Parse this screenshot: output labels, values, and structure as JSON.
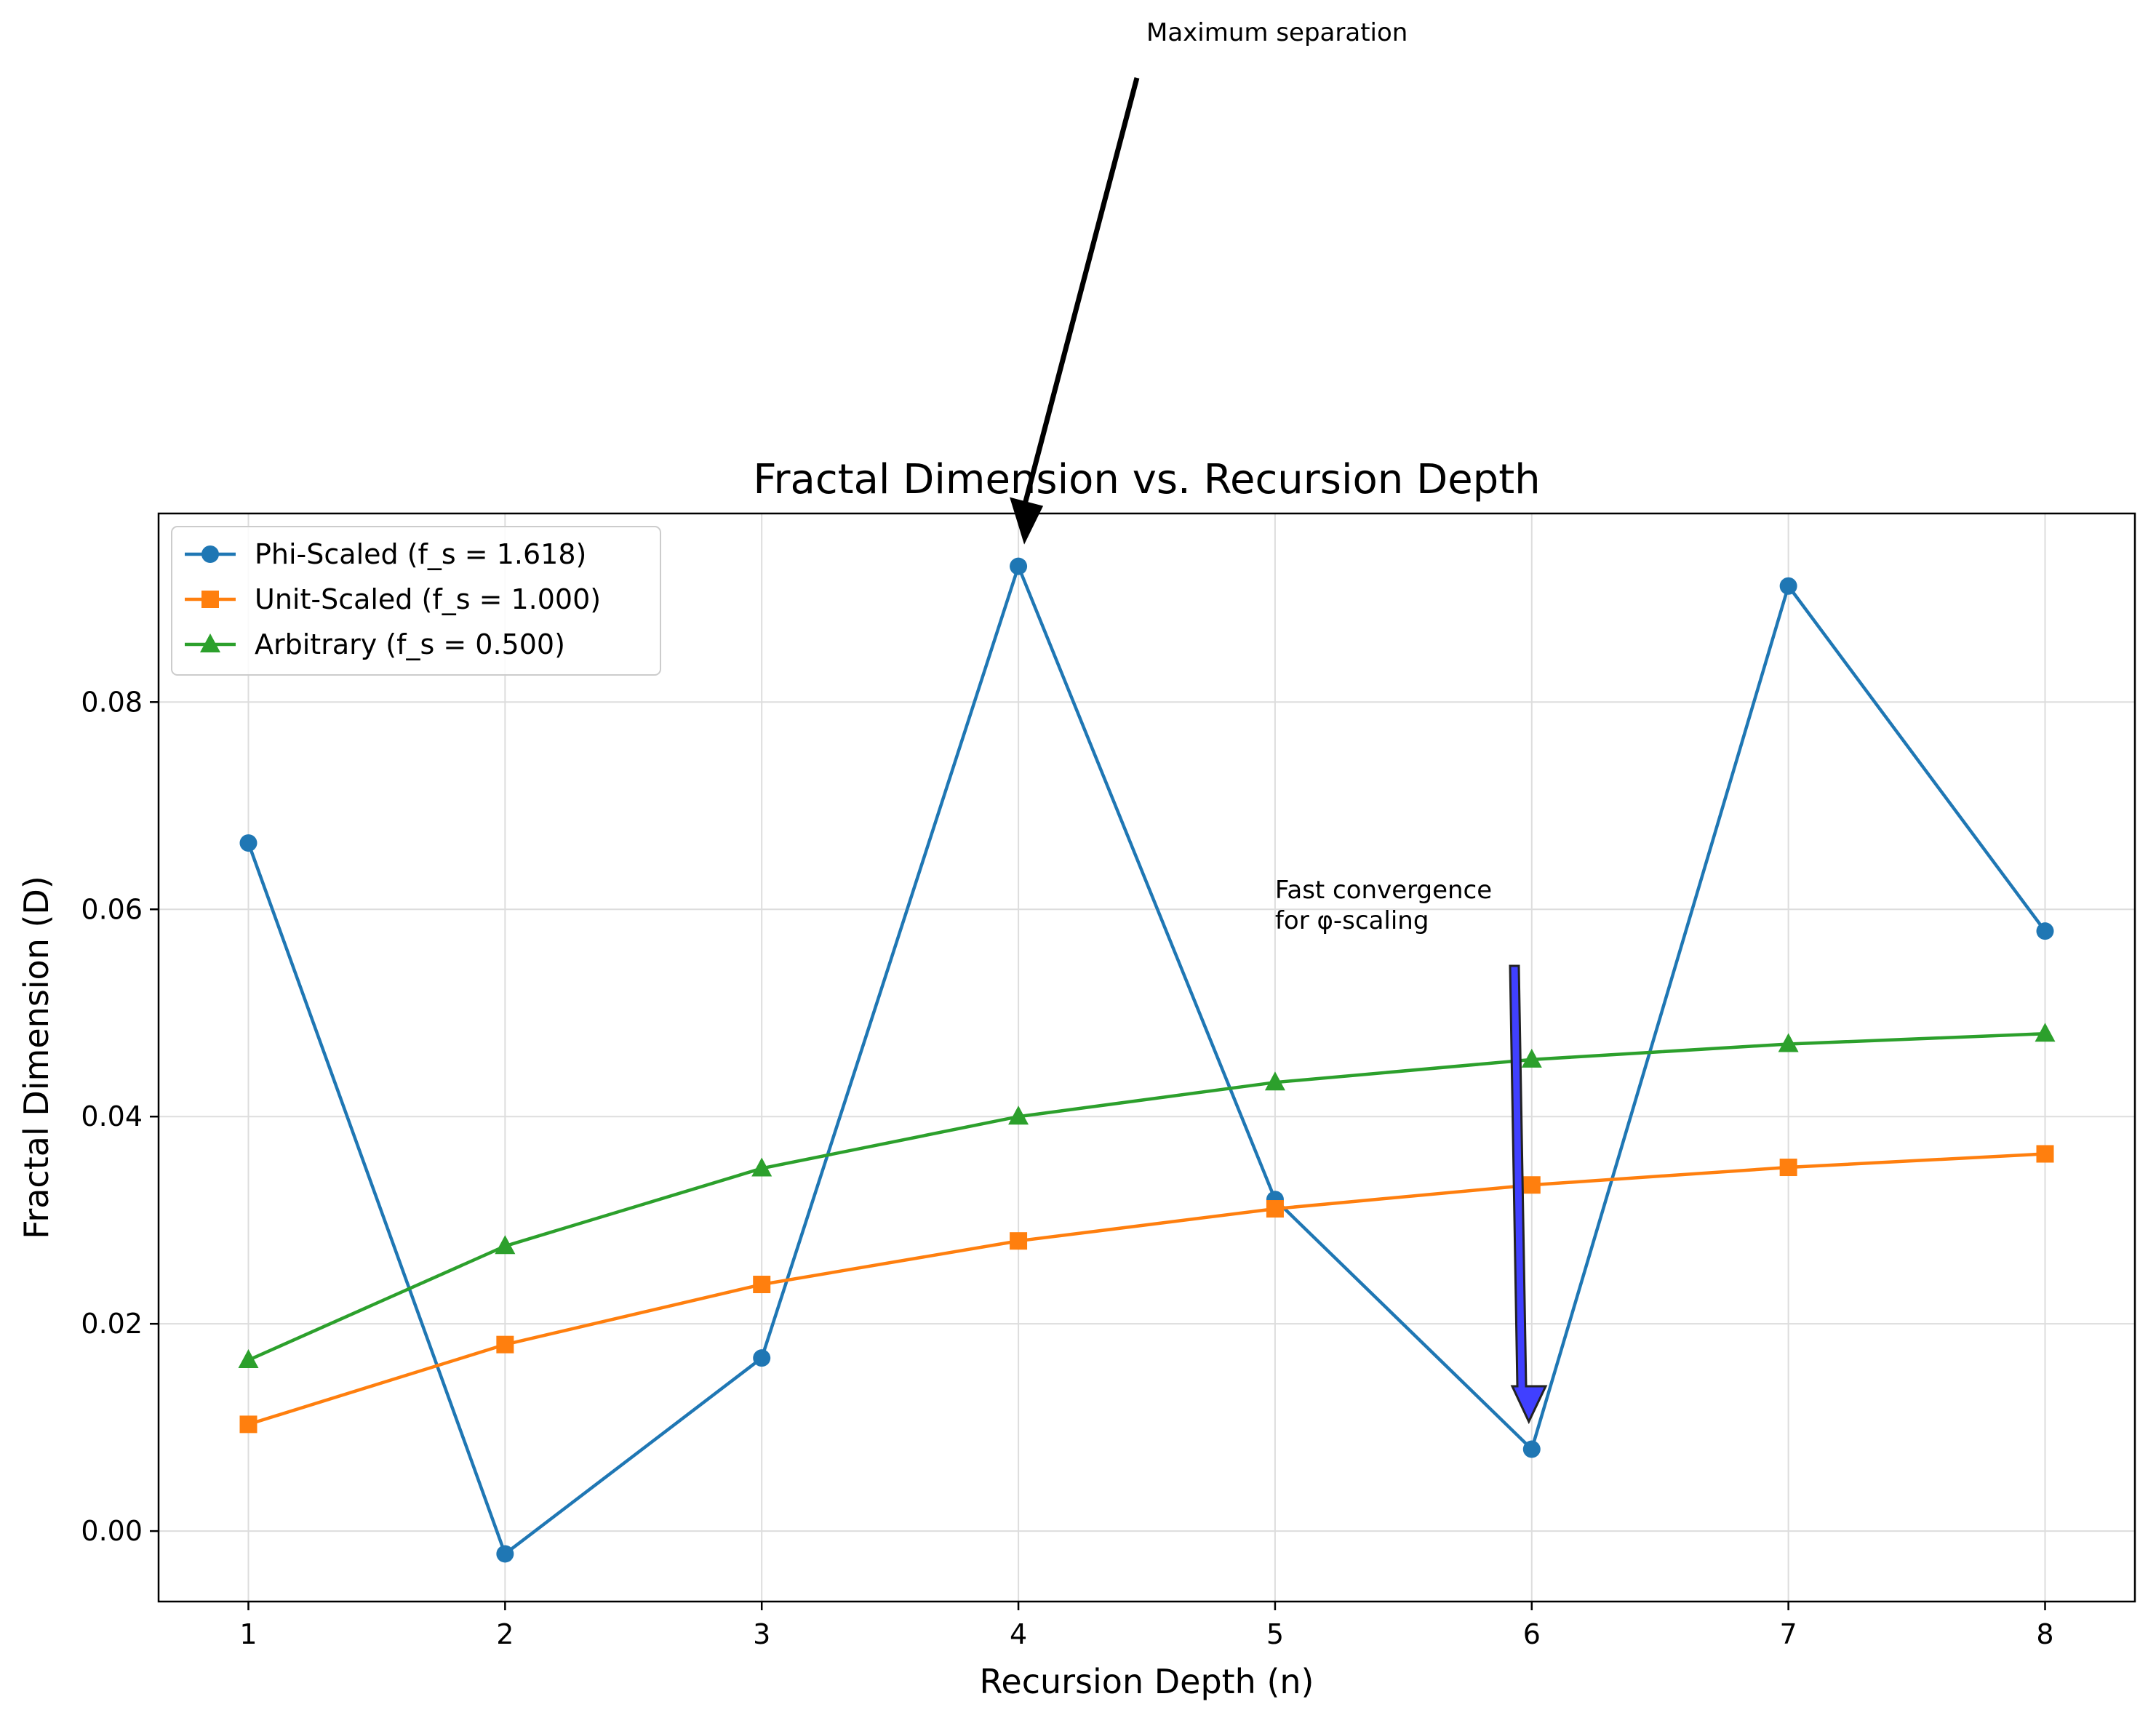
{
  "chart_data": {
    "type": "line",
    "title": "Fractal Dimension vs. Recursion Depth",
    "xlabel": "Recursion Depth (n)",
    "ylabel": "Fractal Dimension (D)",
    "x": [
      1,
      2,
      3,
      4,
      5,
      6,
      7,
      8
    ],
    "xlim": [
      0.65,
      8.35
    ],
    "ylim": [
      -0.0068,
      0.0982
    ],
    "x_ticks": [
      "1",
      "2",
      "3",
      "4",
      "5",
      "6",
      "7",
      "8"
    ],
    "y_ticks": [
      0.0,
      0.02,
      0.04,
      0.06,
      0.08
    ],
    "y_tick_labels": [
      "0.00",
      "0.02",
      "0.04",
      "0.06",
      "0.08"
    ],
    "grid": true,
    "legend_position": "top-left",
    "series": [
      {
        "name": "Phi-Scaled (f_s = 1.618)",
        "color": "#1f77b4",
        "marker": "circle",
        "values": [
          0.0664,
          -0.0022,
          0.0167,
          0.0931,
          0.032,
          0.0079,
          0.0912,
          0.0579
        ]
      },
      {
        "name": "Unit-Scaled (f_s = 1.000)",
        "color": "#ff7f0e",
        "marker": "square",
        "values": [
          0.0103,
          0.018,
          0.0238,
          0.028,
          0.0311,
          0.0334,
          0.0351,
          0.0364
        ]
      },
      {
        "name": "Arbitrary (f_s = 0.500)",
        "color": "#2ca02c",
        "marker": "triangle",
        "values": [
          0.0165,
          0.0275,
          0.035,
          0.04,
          0.0433,
          0.0455,
          0.047,
          0.048
        ]
      }
    ],
    "annotations": [
      {
        "text": "Maximum separation",
        "target": {
          "x": 4,
          "y": 0.0931
        },
        "arrow_color": "#000000"
      },
      {
        "text_lines": [
          "Fast convergence",
          "for φ-scaling"
        ],
        "target": {
          "x": 6,
          "y": 0.0079
        },
        "arrow_color": "#4040ff"
      }
    ]
  }
}
